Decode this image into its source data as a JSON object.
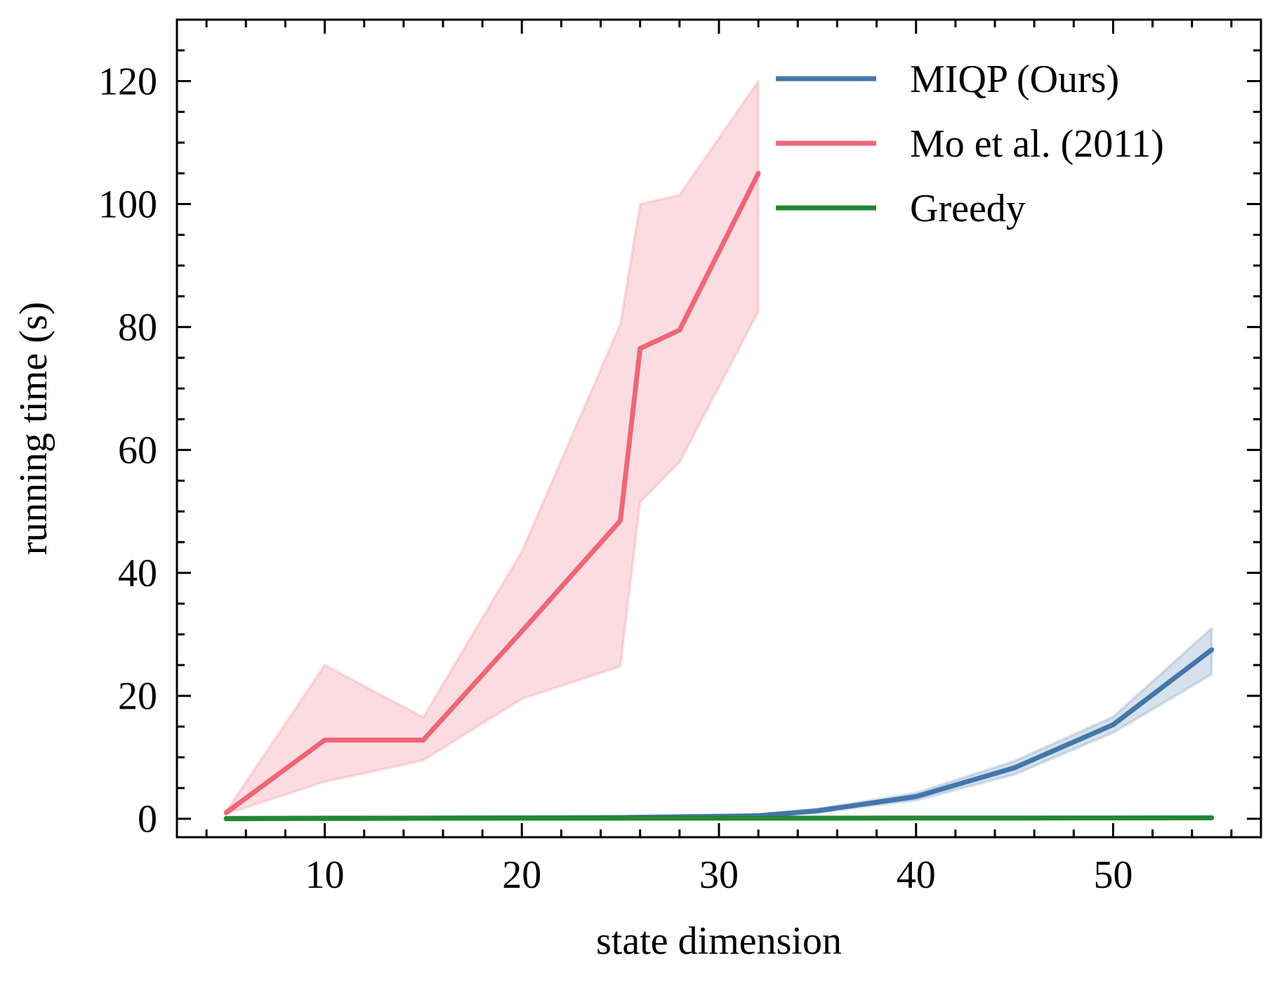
{
  "chart_data": {
    "type": "line",
    "title": "",
    "xlabel": "state dimension",
    "ylabel": "running time (s)",
    "xlim": [
      2.5,
      57.5
    ],
    "ylim": [
      -3,
      130
    ],
    "x_ticks": [
      10,
      20,
      30,
      40,
      50
    ],
    "y_ticks": [
      0,
      20,
      40,
      60,
      80,
      100,
      120
    ],
    "x_minor_step": 2,
    "y_minor_step": 5,
    "grid": false,
    "legend_position": "top-right",
    "series": [
      {
        "name": "MIQP (Ours)",
        "color": "#4477aa",
        "x": [
          5,
          10,
          15,
          20,
          25,
          30,
          32,
          35,
          40,
          45,
          50,
          55
        ],
        "y": [
          0.05,
          0.1,
          0.12,
          0.15,
          0.2,
          0.4,
          0.5,
          1.3,
          3.6,
          8.3,
          15.3,
          27.5
        ],
        "lower": [
          0.03,
          0.08,
          0.1,
          0.12,
          0.15,
          0.3,
          0.4,
          1.0,
          3.0,
          7.2,
          14.0,
          23.5
        ],
        "upper": [
          0.07,
          0.12,
          0.14,
          0.18,
          0.25,
          0.5,
          0.6,
          1.6,
          4.2,
          9.4,
          16.6,
          31.0
        ]
      },
      {
        "name": "Mo et al. (2011)",
        "color": "#ee6677",
        "x": [
          5,
          10,
          15,
          20,
          25,
          26,
          28,
          32
        ],
        "y": [
          1.0,
          12.8,
          12.8,
          30.5,
          48.5,
          76.5,
          79.5,
          105.0
        ],
        "lower": [
          0.8,
          6.0,
          9.5,
          19.5,
          24.8,
          51.5,
          58.0,
          82.5
        ],
        "upper": [
          1.2,
          25.0,
          16.5,
          43.5,
          80.5,
          100.0,
          101.5,
          120.0
        ]
      },
      {
        "name": "Greedy",
        "color": "#228833",
        "x": [
          5,
          10,
          15,
          20,
          25,
          30,
          35,
          40,
          45,
          50,
          55
        ],
        "y": [
          0.0,
          0.05,
          0.08,
          0.1,
          0.1,
          0.1,
          0.1,
          0.12,
          0.12,
          0.13,
          0.15
        ],
        "lower": null,
        "upper": null
      }
    ]
  }
}
